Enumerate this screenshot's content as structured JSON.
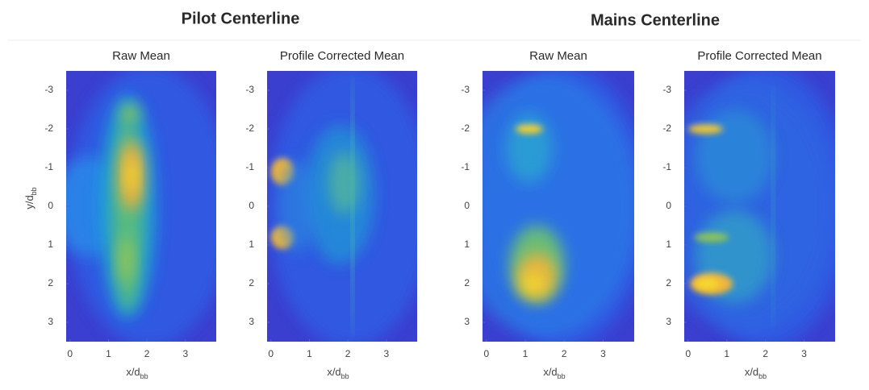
{
  "groups": [
    {
      "title": "Pilot Centerline"
    },
    {
      "title": "Mains Centerline"
    }
  ],
  "chart_data": [
    {
      "type": "heatmap",
      "title": "Raw Mean",
      "xlabel": "x/d",
      "xlabel_sub": "bb",
      "ylabel": "y/d",
      "ylabel_sub": "bb",
      "xlim": [
        -0.1,
        3.8
      ],
      "ylim": [
        -3.5,
        3.5
      ],
      "xticks": [
        0,
        1,
        2,
        3
      ],
      "yticks": [
        -3,
        -2,
        -1,
        0,
        1,
        2,
        3
      ]
    },
    {
      "type": "heatmap",
      "title": "Profile Corrected Mean",
      "xlabel": "x/d",
      "xlabel_sub": "bb",
      "xlim": [
        -0.1,
        3.8
      ],
      "ylim": [
        -3.5,
        3.5
      ],
      "xticks": [
        0,
        1,
        2,
        3
      ],
      "yticks": [
        -3,
        -2,
        -1,
        0,
        1,
        2,
        3
      ]
    },
    {
      "type": "heatmap",
      "title": "Raw Mean",
      "xlabel": "x/d",
      "xlabel_sub": "bb",
      "xlim": [
        -0.1,
        3.8
      ],
      "ylim": [
        -3.5,
        3.5
      ],
      "xticks": [
        0,
        1,
        2,
        3
      ],
      "yticks": [
        -3,
        -2,
        -1,
        0,
        1,
        2,
        3
      ]
    },
    {
      "type": "heatmap",
      "title": "Profile Corrected Mean",
      "xlabel": "x/d",
      "xlabel_sub": "bb",
      "xlim": [
        -0.1,
        3.8
      ],
      "ylim": [
        -3.5,
        3.5
      ],
      "xticks": [
        0,
        1,
        2,
        3
      ],
      "yticks": [
        -3,
        -2,
        -1,
        0,
        1,
        2,
        3
      ]
    }
  ]
}
